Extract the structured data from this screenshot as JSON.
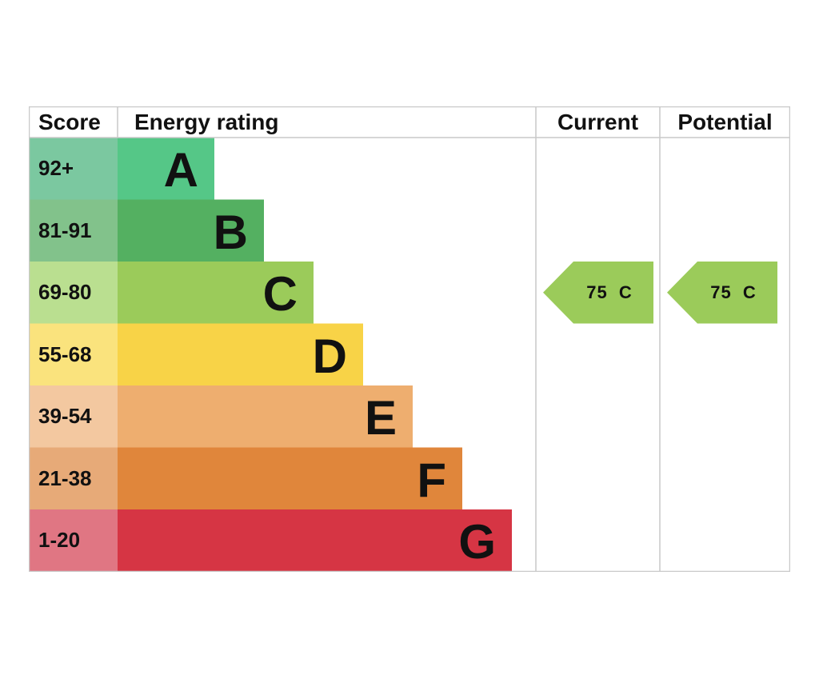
{
  "headers": {
    "score": "Score",
    "energy_rating": "Energy rating",
    "current": "Current",
    "potential": "Potential"
  },
  "chart_data": {
    "type": "bar",
    "title": "",
    "bands": [
      {
        "letter": "A",
        "score_range": "92+",
        "color": "#55c787",
        "score_bg": "#7bc8a0"
      },
      {
        "letter": "B",
        "score_range": "81-91",
        "color": "#54b061",
        "score_bg": "#82c28b"
      },
      {
        "letter": "C",
        "score_range": "69-80",
        "color": "#9bcb5a",
        "score_bg": "#badf90"
      },
      {
        "letter": "D",
        "score_range": "55-68",
        "color": "#f8d347",
        "score_bg": "#fae37d"
      },
      {
        "letter": "E",
        "score_range": "39-54",
        "color": "#eeae6f",
        "score_bg": "#f3c8a0"
      },
      {
        "letter": "F",
        "score_range": "21-38",
        "color": "#e0863b",
        "score_bg": "#e7aa78"
      },
      {
        "letter": "G",
        "score_range": "1-20",
        "color": "#d63544",
        "score_bg": "#e07683"
      }
    ],
    "current": {
      "score": 75,
      "band": "C",
      "label": "75  C",
      "color": "#9bcb5a"
    },
    "potential": {
      "score": 75,
      "band": "C",
      "label": "75  C",
      "color": "#9bcb5a"
    }
  }
}
